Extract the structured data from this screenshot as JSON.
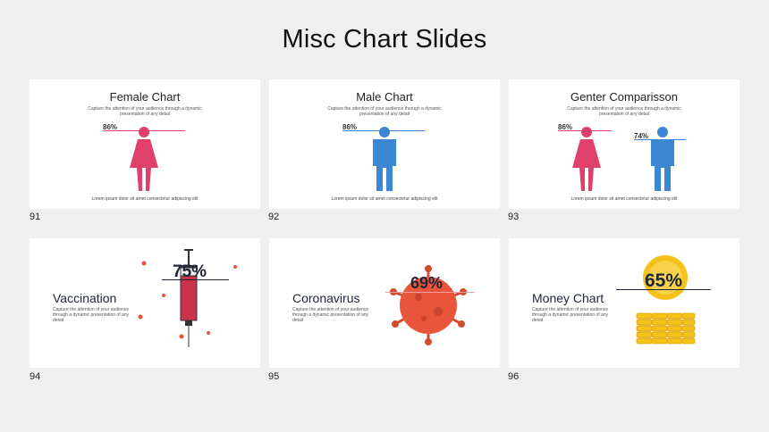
{
  "page": {
    "title": "Misc Chart Slides"
  },
  "colors": {
    "female": "#e0416a",
    "male": "#3b87d3",
    "syringe": "#c8324a",
    "virus": "#e8553a",
    "coin": "#f4c21b",
    "navy": "#1e2538"
  },
  "slides": [
    {
      "number": "91",
      "title": "Female Chart",
      "subtitle": "Capture the attention of your audience through a dynamic presentation of any detail",
      "percent": "86%",
      "footer": "Lorem ipsum dolor sit amet consectetur adipiscing elit"
    },
    {
      "number": "92",
      "title": "Male Chart",
      "subtitle": "Capture the attention of your audience through a dynamic presentation of any detail",
      "percent": "86%",
      "footer": "Lorem ipsum dolor sit amet consectetur adipiscing elit"
    },
    {
      "number": "93",
      "title": "Genter Comparisson",
      "subtitle": "Capture the attention of your audience through a dynamic presentation of any detail",
      "percent_female": "86%",
      "percent_male": "74%",
      "footer": "Lorem ipsum dolor sit amet consectetur adipiscing elit"
    },
    {
      "number": "94",
      "title": "Vaccination",
      "subtitle": "Capture the attention of your audience through a dynamic presentation of any detail",
      "percent": "75%"
    },
    {
      "number": "95",
      "title": "Coronavirus",
      "subtitle": "Capture the attention of your audience through a dynamic presentation of any detail",
      "percent": "69%"
    },
    {
      "number": "96",
      "title": "Money Chart",
      "subtitle": "Capture the attention of your audience through a dynamic presentation of any detail",
      "percent": "65%"
    }
  ]
}
